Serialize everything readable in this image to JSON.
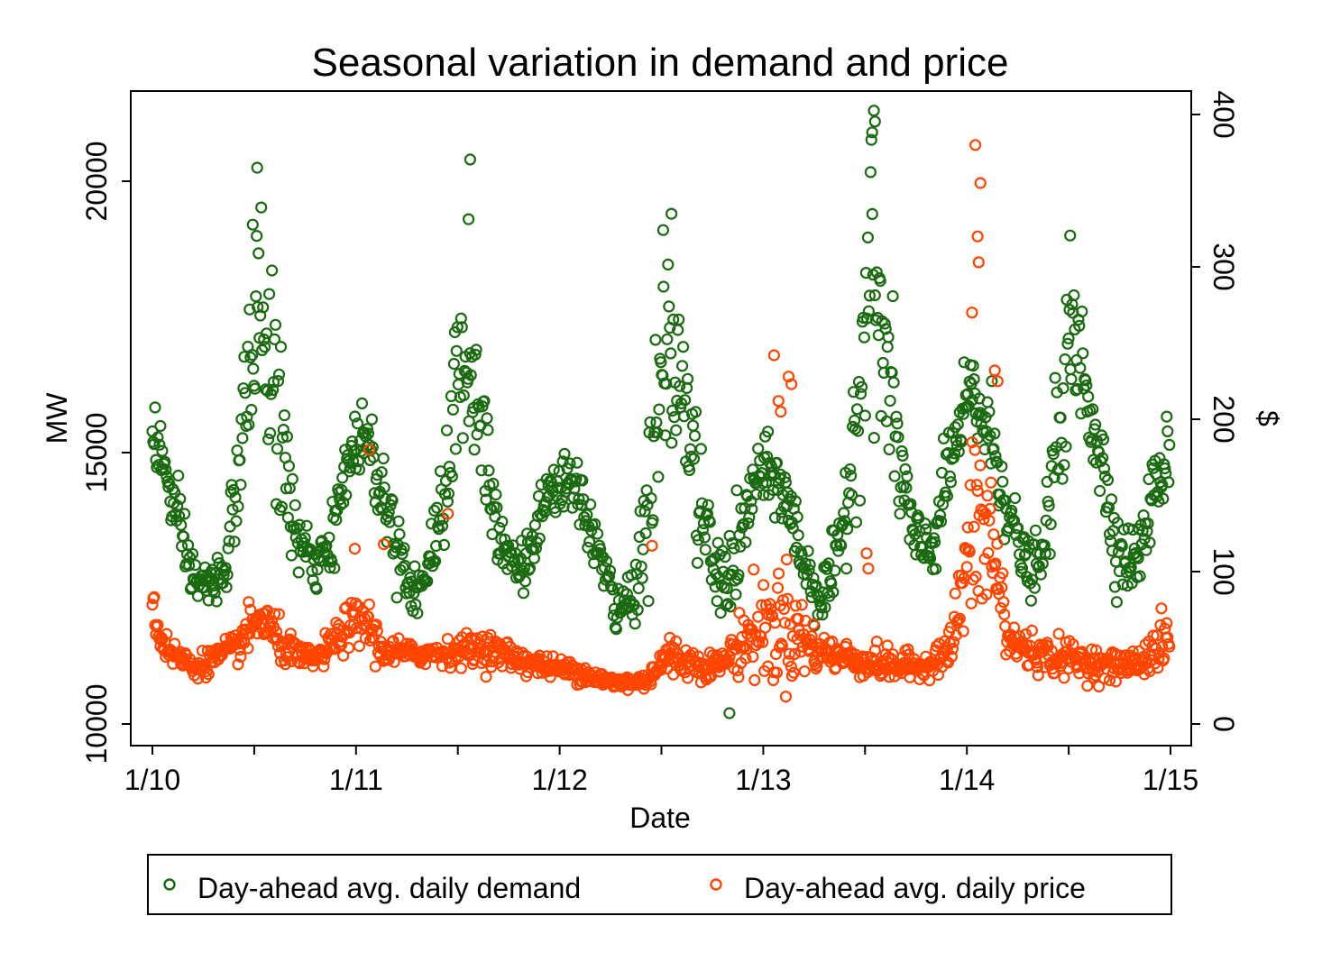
{
  "chart_data": {
    "type": "scatter",
    "title": "Seasonal variation in demand and price",
    "xlabel": "Date",
    "ylabel_left": "MW",
    "ylabel_right": "$",
    "x_ticks": [
      "1/10",
      "1/11",
      "1/12",
      "1/13",
      "1/14",
      "1/15"
    ],
    "x_range": [
      "2010-01-01",
      "2015-01-01"
    ],
    "y_left_ticks": [
      10000,
      15000,
      20000
    ],
    "y_left_range": [
      9800,
      21700
    ],
    "y_right_ticks": [
      0,
      100,
      200,
      300,
      400
    ],
    "y_right_range": [
      -6,
      408
    ],
    "grid": false,
    "legend_position": "bottom",
    "colors": {
      "demand": "#1a6b10",
      "price": "#ff4500"
    },
    "series": [
      {
        "name": "Day-ahead avg. daily demand",
        "axis": "left",
        "keypoints": [
          [
            "2010-01-01",
            15500,
            450
          ],
          [
            "2010-01-20",
            14800,
            450
          ],
          [
            "2010-02-15",
            13700,
            450
          ],
          [
            "2010-03-15",
            12700,
            350
          ],
          [
            "2010-04-15",
            12500,
            300
          ],
          [
            "2010-05-15",
            13000,
            400
          ],
          [
            "2010-06-15",
            15500,
            900
          ],
          [
            "2010-07-10",
            18000,
            1100
          ],
          [
            "2010-08-01",
            16500,
            1300
          ],
          [
            "2010-08-25",
            15000,
            1100
          ],
          [
            "2010-09-15",
            13500,
            500
          ],
          [
            "2010-10-15",
            12900,
            300
          ],
          [
            "2010-11-15",
            13100,
            350
          ],
          [
            "2010-12-15",
            14800,
            500
          ],
          [
            "2011-01-15",
            15400,
            400
          ],
          [
            "2011-02-10",
            14600,
            600
          ],
          [
            "2011-03-10",
            13600,
            500
          ],
          [
            "2011-04-10",
            12500,
            350
          ],
          [
            "2011-05-10",
            12700,
            400
          ],
          [
            "2011-06-10",
            14500,
            800
          ],
          [
            "2011-07-15",
            17000,
            1300
          ],
          [
            "2011-08-10",
            15800,
            1100
          ],
          [
            "2011-09-05",
            14200,
            700
          ],
          [
            "2011-10-01",
            13100,
            450
          ],
          [
            "2011-11-01",
            12900,
            350
          ],
          [
            "2011-12-01",
            13900,
            400
          ],
          [
            "2012-01-10",
            14500,
            350
          ],
          [
            "2012-02-15",
            14000,
            400
          ],
          [
            "2012-03-15",
            13000,
            400
          ],
          [
            "2012-04-15",
            12000,
            350
          ],
          [
            "2012-05-15",
            12500,
            400
          ],
          [
            "2012-06-10",
            14200,
            1000
          ],
          [
            "2012-07-10",
            16800,
            1300
          ],
          [
            "2012-08-10",
            16200,
            1000
          ],
          [
            "2012-09-05",
            14200,
            900
          ],
          [
            "2012-10-10",
            12600,
            450
          ],
          [
            "2012-11-15",
            13000,
            700
          ],
          [
            "2012-12-15",
            14500,
            450
          ],
          [
            "2013-01-20",
            14600,
            450
          ],
          [
            "2013-02-15",
            14000,
            500
          ],
          [
            "2013-03-20",
            12800,
            450
          ],
          [
            "2013-04-15",
            12300,
            400
          ],
          [
            "2013-05-15",
            13000,
            450
          ],
          [
            "2013-06-15",
            15500,
            1100
          ],
          [
            "2013-07-10",
            18500,
            1600
          ],
          [
            "2013-08-10",
            16500,
            1200
          ],
          [
            "2013-09-05",
            14600,
            900
          ],
          [
            "2013-10-01",
            13200,
            500
          ],
          [
            "2013-11-01",
            13300,
            450
          ],
          [
            "2013-12-01",
            14800,
            500
          ],
          [
            "2014-01-10",
            16100,
            600
          ],
          [
            "2014-02-15",
            15200,
            700
          ],
          [
            "2014-03-15",
            14000,
            500
          ],
          [
            "2014-04-15",
            12900,
            350
          ],
          [
            "2014-05-15",
            12900,
            400
          ],
          [
            "2014-06-15",
            15500,
            900
          ],
          [
            "2014-07-10",
            17000,
            1000
          ],
          [
            "2014-08-10",
            16000,
            900
          ],
          [
            "2014-09-05",
            14500,
            600
          ],
          [
            "2014-10-01",
            13100,
            500
          ],
          [
            "2014-11-01",
            13000,
            400
          ],
          [
            "2014-12-01",
            14200,
            500
          ],
          [
            "2014-12-31",
            15100,
            500
          ]
        ],
        "outliers": [
          [
            "2010-07-08",
            20250
          ],
          [
            "2011-07-25",
            20400
          ],
          [
            "2012-07-20",
            19400
          ],
          [
            "2012-07-05",
            19100
          ],
          [
            "2013-07-18",
            21300
          ],
          [
            "2013-07-20",
            21100
          ],
          [
            "2013-07-15",
            20900
          ],
          [
            "2012-11-01",
            10200
          ],
          [
            "2014-07-05",
            19000
          ],
          [
            "2010-06-30",
            19200
          ],
          [
            "2011-07-22",
            19300
          ]
        ]
      },
      {
        "name": "Day-ahead avg. daily price",
        "axis": "right",
        "keypoints": [
          [
            "2010-01-01",
            90,
            14
          ],
          [
            "2010-01-10",
            60,
            10
          ],
          [
            "2010-02-01",
            48,
            7
          ],
          [
            "2010-03-15",
            37,
            5
          ],
          [
            "2010-04-15",
            42,
            6
          ],
          [
            "2010-05-25",
            48,
            7
          ],
          [
            "2010-07-15",
            70,
            12
          ],
          [
            "2010-08-20",
            52,
            9
          ],
          [
            "2010-09-30",
            42,
            6
          ],
          [
            "2010-11-01",
            45,
            6
          ],
          [
            "2010-12-15",
            63,
            10
          ],
          [
            "2011-01-20",
            68,
            13
          ],
          [
            "2011-02-15",
            48,
            8
          ],
          [
            "2011-04-15",
            46,
            5
          ],
          [
            "2011-06-15",
            47,
            6
          ],
          [
            "2011-08-15",
            50,
            8
          ],
          [
            "2011-10-01",
            45,
            7
          ],
          [
            "2011-12-01",
            38,
            5
          ],
          [
            "2012-02-01",
            35,
            5
          ],
          [
            "2012-04-01",
            27,
            4
          ],
          [
            "2012-06-01",
            28,
            4
          ],
          [
            "2012-07-15",
            45,
            10
          ],
          [
            "2012-09-15",
            38,
            6
          ],
          [
            "2012-10-20",
            40,
            6
          ],
          [
            "2012-12-10",
            60,
            20
          ],
          [
            "2013-02-10",
            65,
            30
          ],
          [
            "2013-04-10",
            48,
            9
          ],
          [
            "2013-06-15",
            42,
            7
          ],
          [
            "2013-08-15",
            38,
            8
          ],
          [
            "2013-10-15",
            38,
            5
          ],
          [
            "2013-12-01",
            48,
            10
          ],
          [
            "2014-01-15",
            130,
            45
          ],
          [
            "2014-02-15",
            120,
            40
          ],
          [
            "2014-03-15",
            55,
            12
          ],
          [
            "2014-05-15",
            45,
            8
          ],
          [
            "2014-07-15",
            42,
            9
          ],
          [
            "2014-09-15",
            38,
            6
          ],
          [
            "2014-11-01",
            40,
            7
          ],
          [
            "2014-12-31",
            55,
            15
          ]
        ],
        "outliers": [
          [
            "2014-01-16",
            380
          ],
          [
            "2014-01-25",
            355
          ],
          [
            "2014-01-20",
            320
          ],
          [
            "2014-01-22",
            303
          ],
          [
            "2014-01-10",
            270
          ],
          [
            "2013-01-20",
            242
          ],
          [
            "2013-02-15",
            228
          ],
          [
            "2013-02-20",
            223
          ],
          [
            "2013-01-28",
            212
          ],
          [
            "2013-02-01",
            205
          ],
          [
            "2011-06-15",
            138
          ],
          [
            "2010-12-30",
            115
          ],
          [
            "2011-01-25",
            180
          ],
          [
            "2011-02-20",
            118
          ],
          [
            "2012-06-15",
            117
          ],
          [
            "2013-07-05",
            112
          ],
          [
            "2013-07-08",
            102
          ],
          [
            "2014-02-20",
            232
          ],
          [
            "2014-02-25",
            225
          ]
        ]
      }
    ]
  },
  "legend": {
    "demand_label": "Day-ahead avg. daily demand",
    "price_label": "Day-ahead avg. daily price"
  }
}
